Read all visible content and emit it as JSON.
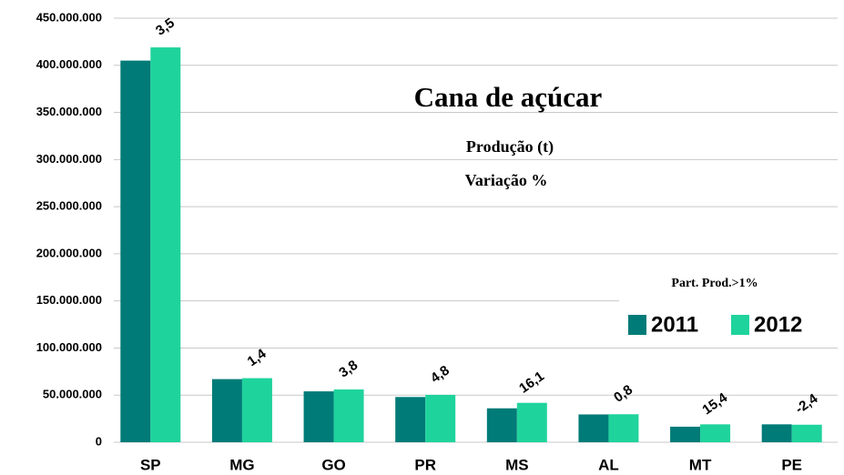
{
  "chart_data": {
    "type": "bar",
    "title": "Cana de açúcar",
    "subtitle": [
      "Produção (t)",
      "Variação %"
    ],
    "legend_title": "Part. Prod.>1%",
    "categories": [
      "SP",
      "MG",
      "GO",
      "PR",
      "MS",
      "AL",
      "MT",
      "PE"
    ],
    "series": [
      {
        "name": "2011",
        "color": "#007b78",
        "values": [
          405000000,
          67000000,
          54000000,
          48000000,
          36000000,
          29500000,
          16500000,
          19000000
        ]
      },
      {
        "name": "2012",
        "color": "#1fd39c",
        "values": [
          419000000,
          68000000,
          56000000,
          50300000,
          41800000,
          29700000,
          19000000,
          18600000
        ]
      }
    ],
    "variation_labels": [
      "3,5",
      "1,4",
      "3,8",
      "4,8",
      "16,1",
      "0,8",
      "15,4",
      "-2,4"
    ],
    "ylim": [
      0,
      450000000
    ],
    "yticks": [
      0,
      {
        "value": 50000000,
        "label": "50.000.000"
      },
      {
        "value": 100000000,
        "label": "100.000.000"
      },
      {
        "value": 150000000,
        "label": "150.000.000"
      },
      {
        "value": 200000000,
        "label": "200.000.000"
      },
      {
        "value": 250000000,
        "label": "250.000.000"
      },
      {
        "value": 300000000,
        "label": "300.000.000"
      },
      {
        "value": 350000000,
        "label": "350.000.000"
      },
      {
        "value": 400000000,
        "label": "400.000.000"
      },
      {
        "value": 450000000,
        "label": "450.000.000"
      }
    ],
    "grid": true
  }
}
